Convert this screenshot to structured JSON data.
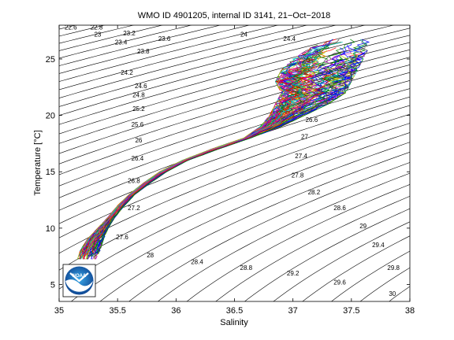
{
  "chart_data": {
    "type": "line",
    "title": "WMO ID 4901205, internal ID 3141, 21−Oct−2018",
    "xlabel": "Salinity",
    "ylabel": "Temperature [°C]",
    "xlim": [
      35,
      38
    ],
    "ylim": [
      3.5,
      28
    ],
    "xticks": [
      "35",
      "35.5",
      "36",
      "36.5",
      "37",
      "37.5",
      "38"
    ],
    "yticks": [
      "5",
      "10",
      "15",
      "20",
      "25"
    ],
    "grid": false,
    "legend": "none",
    "density_contour_labels": [
      {
        "text": "22.6",
        "s": 35.1,
        "t": 27.6
      },
      {
        "text": "22.8",
        "s": 35.32,
        "t": 27.6
      },
      {
        "text": "23",
        "s": 35.33,
        "t": 27.0
      },
      {
        "text": "23.2",
        "s": 35.6,
        "t": 27.1
      },
      {
        "text": "23.4",
        "s": 35.53,
        "t": 26.3
      },
      {
        "text": "23.6",
        "s": 35.9,
        "t": 26.6
      },
      {
        "text": "23.8",
        "s": 35.72,
        "t": 25.5
      },
      {
        "text": "24",
        "s": 36.58,
        "t": 27.0
      },
      {
        "text": "24.2",
        "s": 35.58,
        "t": 23.6
      },
      {
        "text": "24.4",
        "s": 36.97,
        "t": 26.6
      },
      {
        "text": "24.6",
        "s": 35.7,
        "t": 22.4
      },
      {
        "text": "24.8",
        "s": 35.68,
        "t": 21.6
      },
      {
        "text": "25",
        "s": 37.12,
        "t": 25.0
      },
      {
        "text": "25.2",
        "s": 35.68,
        "t": 20.4
      },
      {
        "text": "25.6",
        "s": 35.67,
        "t": 19.0
      },
      {
        "text": "26",
        "s": 35.68,
        "t": 17.6
      },
      {
        "text": "26.4",
        "s": 35.67,
        "t": 16.0
      },
      {
        "text": "26.6",
        "s": 37.16,
        "t": 19.4
      },
      {
        "text": "26.8",
        "s": 35.64,
        "t": 14.0
      },
      {
        "text": "27",
        "s": 37.1,
        "t": 17.9
      },
      {
        "text": "27.2",
        "s": 35.64,
        "t": 11.6
      },
      {
        "text": "27.4",
        "s": 37.07,
        "t": 16.2
      },
      {
        "text": "27.6",
        "s": 35.54,
        "t": 9.0
      },
      {
        "text": "27.8",
        "s": 37.04,
        "t": 14.5
      },
      {
        "text": "28",
        "s": 35.78,
        "t": 7.4
      },
      {
        "text": "28.2",
        "s": 37.18,
        "t": 13.0
      },
      {
        "text": "28.4",
        "s": 36.18,
        "t": 6.8
      },
      {
        "text": "28.6",
        "s": 37.4,
        "t": 11.6
      },
      {
        "text": "28.8",
        "s": 36.6,
        "t": 6.3
      },
      {
        "text": "29",
        "s": 37.6,
        "t": 10.0
      },
      {
        "text": "29.2",
        "s": 37.0,
        "t": 5.8
      },
      {
        "text": "29.4",
        "s": 37.73,
        "t": 8.3
      },
      {
        "text": "29.6",
        "s": 37.4,
        "t": 5.0
      },
      {
        "text": "29.8",
        "s": 37.86,
        "t": 6.3
      },
      {
        "text": "30",
        "s": 37.85,
        "t": 4.0
      }
    ],
    "profile_envelope": [
      {
        "t": 7.0,
        "s_min": 35.15,
        "s_max": 35.3
      },
      {
        "t": 8.0,
        "s_min": 35.18,
        "s_max": 35.35
      },
      {
        "t": 9.0,
        "s_min": 35.24,
        "s_max": 35.38
      },
      {
        "t": 10.0,
        "s_min": 35.33,
        "s_max": 35.42
      },
      {
        "t": 11.0,
        "s_min": 35.42,
        "s_max": 35.48
      },
      {
        "t": 12.0,
        "s_min": 35.5,
        "s_max": 35.56
      },
      {
        "t": 13.0,
        "s_min": 35.6,
        "s_max": 35.65
      },
      {
        "t": 14.0,
        "s_min": 35.72,
        "s_max": 35.78
      },
      {
        "t": 15.0,
        "s_min": 35.86,
        "s_max": 35.92
      },
      {
        "t": 16.0,
        "s_min": 36.05,
        "s_max": 36.1
      },
      {
        "t": 17.0,
        "s_min": 36.3,
        "s_max": 36.36
      },
      {
        "t": 18.0,
        "s_min": 36.58,
        "s_max": 36.64
      },
      {
        "t": 19.0,
        "s_min": 36.72,
        "s_max": 36.9
      },
      {
        "t": 20.0,
        "s_min": 36.8,
        "s_max": 37.1
      },
      {
        "t": 21.0,
        "s_min": 36.85,
        "s_max": 37.3
      },
      {
        "t": 22.0,
        "s_min": 36.9,
        "s_max": 37.45
      },
      {
        "t": 23.0,
        "s_min": 36.85,
        "s_max": 37.5
      },
      {
        "t": 24.0,
        "s_min": 36.9,
        "s_max": 37.55
      },
      {
        "t": 25.0,
        "s_min": 37.0,
        "s_max": 37.6
      },
      {
        "t": 26.0,
        "s_min": 37.15,
        "s_max": 37.65
      },
      {
        "t": 27.0,
        "s_min": 37.4,
        "s_max": 37.65
      }
    ],
    "profile_count": 90,
    "profile_colors": [
      "#0000ff",
      "#008000",
      "#ff0000",
      "#00bfbf",
      "#bf00bf",
      "#bfbf00",
      "#404040"
    ]
  },
  "logo": {
    "text": "NOAA"
  }
}
